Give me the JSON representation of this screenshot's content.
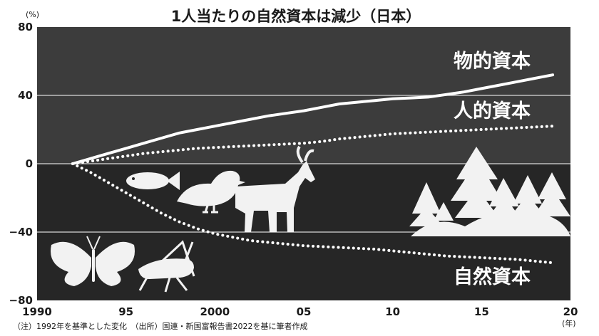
{
  "chart_data": {
    "type": "line",
    "title": "1人当たりの自然資本は減少（日本）",
    "y_unit": "(%)",
    "x_unit": "(年)",
    "xlim": [
      1990,
      2020
    ],
    "ylim": [
      -80,
      80
    ],
    "x_ticks": [
      1990,
      1995,
      2000,
      2005,
      2010,
      2015,
      2020
    ],
    "x_tick_labels": [
      "1990",
      "95",
      "2000",
      "05",
      "10",
      "15",
      "20"
    ],
    "y_ticks": [
      80,
      40,
      0,
      -40,
      -80
    ],
    "y_tick_labels": [
      "80",
      "40",
      "0",
      "−40",
      "−80"
    ],
    "grid": true,
    "colors": {
      "upper_band": "#3c3c3c",
      "lower_band": "#262626",
      "line": "#ffffff",
      "grid": "#d8d8d8"
    },
    "series": [
      {
        "name": "物的資本",
        "style": "solid",
        "x": [
          1992,
          1993,
          1994,
          1995,
          1996,
          1997,
          1998,
          1999,
          2000,
          2001,
          2002,
          2003,
          2004,
          2005,
          2006,
          2007,
          2008,
          2009,
          2010,
          2011,
          2012,
          2013,
          2014,
          2015,
          2016,
          2017,
          2018,
          2019
        ],
        "y": [
          0,
          3,
          6,
          9,
          12,
          15,
          18,
          20,
          22,
          24,
          26,
          28,
          29.5,
          31,
          33,
          35,
          36,
          37,
          38,
          38.5,
          39,
          40.5,
          42,
          44,
          46,
          48,
          50,
          52
        ]
      },
      {
        "name": "人的資本",
        "style": "dotted",
        "x": [
          1992,
          1993,
          1994,
          1995,
          1996,
          1997,
          1998,
          1999,
          2000,
          2001,
          2002,
          2003,
          2004,
          2005,
          2006,
          2007,
          2008,
          2009,
          2010,
          2011,
          2012,
          2013,
          2014,
          2015,
          2016,
          2017,
          2018,
          2019
        ],
        "y": [
          0,
          1.5,
          3,
          4.5,
          6,
          7,
          8,
          9,
          9.5,
          10,
          10.5,
          11,
          11.5,
          12,
          13,
          14.5,
          15.5,
          16.5,
          17.5,
          18,
          18.5,
          19,
          19.5,
          20,
          20.5,
          21,
          21.5,
          22
        ]
      },
      {
        "name": "自然資本",
        "style": "dotted",
        "x": [
          1992,
          1993,
          1994,
          1995,
          1996,
          1997,
          1998,
          1999,
          2000,
          2001,
          2002,
          2003,
          2004,
          2005,
          2006,
          2007,
          2008,
          2009,
          2010,
          2011,
          2012,
          2013,
          2014,
          2015,
          2016,
          2017,
          2018,
          2019
        ],
        "y": [
          0,
          -5,
          -11,
          -17,
          -23,
          -29,
          -34,
          -38,
          -41,
          -43,
          -45,
          -46,
          -47,
          -48,
          -48.5,
          -49,
          -49.5,
          -50,
          -51,
          -52,
          -53,
          -54,
          -54.5,
          -55,
          -55.5,
          -56,
          -57,
          -58
        ]
      }
    ],
    "notes": "（注）1992年を基準とした変化　（出所）国連・新国富報告書2022を基に筆者作成"
  }
}
